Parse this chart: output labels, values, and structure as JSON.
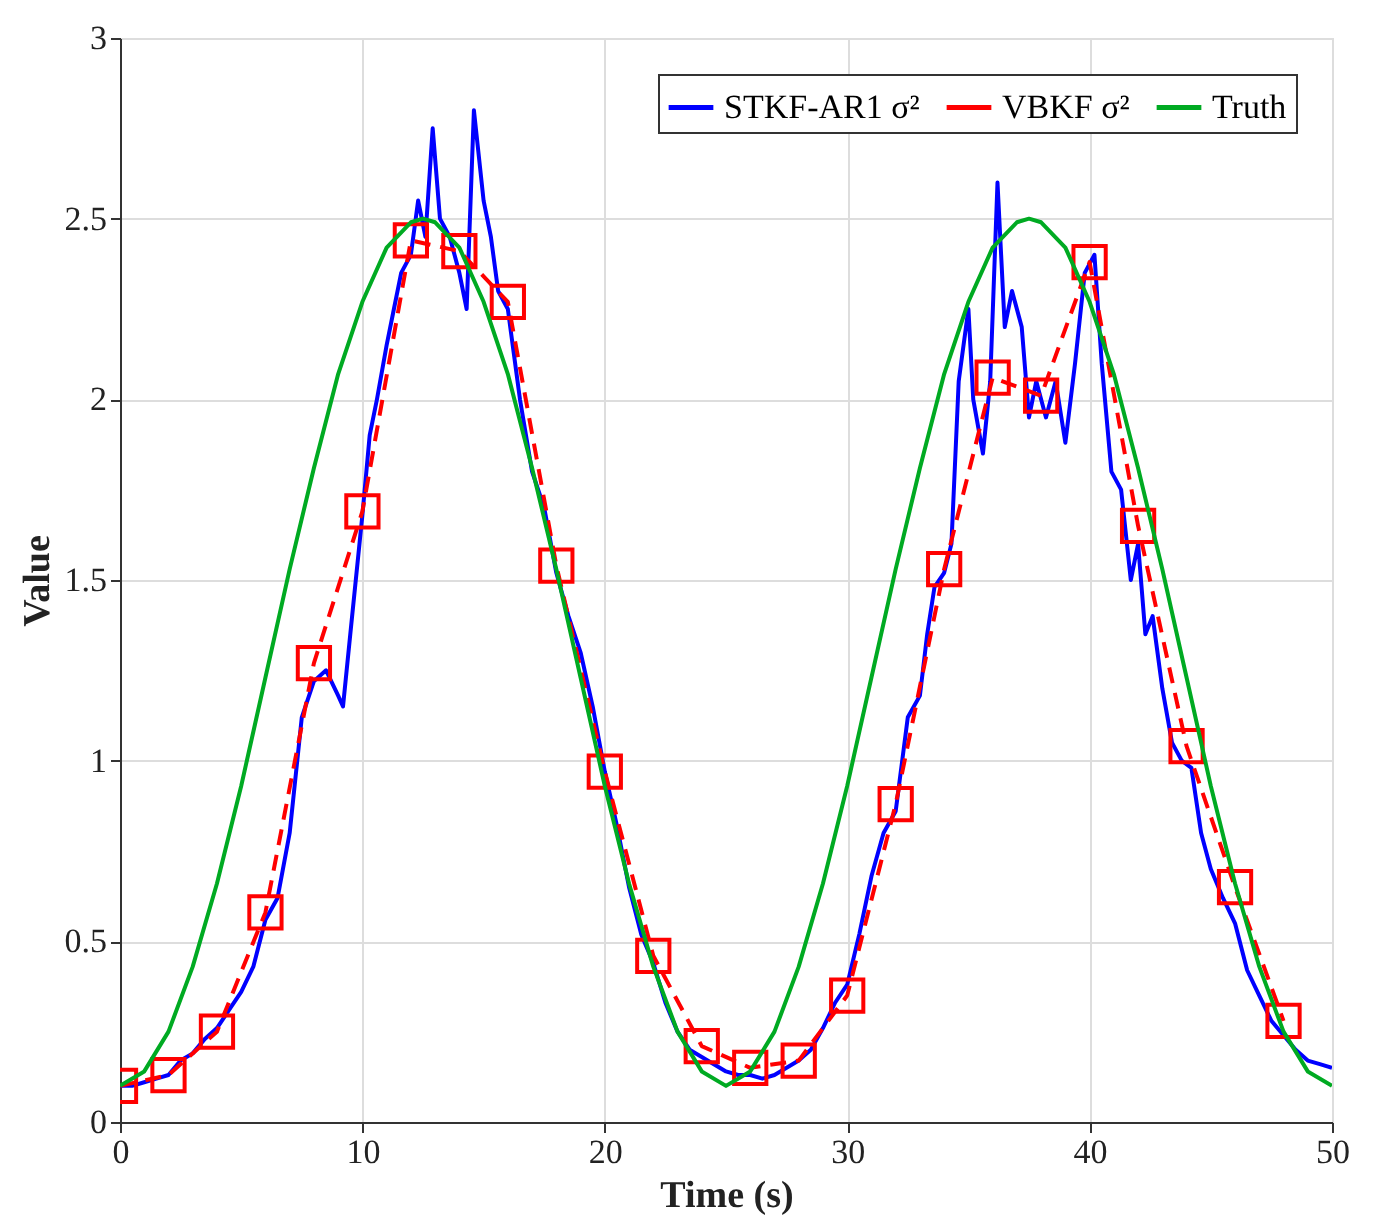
{
  "chart_data": {
    "type": "line",
    "xlabel": "Time (s)",
    "ylabel": "Value",
    "xlim": [
      0,
      50
    ],
    "ylim": [
      0,
      3
    ],
    "xticks": [
      0,
      10,
      20,
      30,
      40,
      50
    ],
    "yticks": [
      0,
      0.5,
      1,
      1.5,
      2,
      2.5,
      3
    ],
    "grid": true,
    "legend": "top right",
    "series": [
      {
        "name": "STKF-AR1 σ²",
        "color": "#0000ff",
        "marker": "none",
        "line_style": "solid",
        "x": [
          0,
          0.5,
          1,
          1.5,
          2,
          2.5,
          3,
          3.5,
          4,
          4.5,
          5,
          5.5,
          6,
          6.5,
          7,
          7.5,
          8,
          8.5,
          9,
          9.2,
          9.5,
          10,
          10.3,
          10.6,
          11,
          11.3,
          11.6,
          12,
          12.3,
          12.6,
          12.9,
          13.2,
          13.6,
          14,
          14.3,
          14.6,
          15,
          15.3,
          15.6,
          16,
          16.5,
          17,
          17.5,
          18,
          18.5,
          19,
          19.5,
          20,
          20.5,
          21,
          21.5,
          22,
          22.5,
          23,
          23.5,
          24,
          24.5,
          25,
          25.5,
          26,
          26.5,
          27,
          27.5,
          28,
          28.5,
          29,
          29.5,
          30,
          30.5,
          31,
          31.5,
          32,
          32.5,
          33,
          33.3,
          33.6,
          34,
          34.3,
          34.6,
          35,
          35.2,
          35.6,
          35.9,
          36.2,
          36.5,
          36.8,
          37.2,
          37.5,
          37.8,
          38.2,
          38.6,
          39,
          39.4,
          39.8,
          40.2,
          40.5,
          40.9,
          41.3,
          41.7,
          42,
          42.3,
          42.6,
          43,
          43.4,
          43.8,
          44.2,
          44.6,
          45,
          45.5,
          46,
          46.5,
          47,
          47.5,
          48,
          48.5,
          49,
          49.5,
          50
        ],
        "values": [
          0.1,
          0.1,
          0.11,
          0.12,
          0.13,
          0.17,
          0.19,
          0.23,
          0.26,
          0.31,
          0.36,
          0.43,
          0.56,
          0.62,
          0.8,
          1.12,
          1.22,
          1.25,
          1.18,
          1.15,
          1.35,
          1.68,
          1.9,
          2.0,
          2.15,
          2.25,
          2.35,
          2.4,
          2.55,
          2.45,
          2.75,
          2.5,
          2.45,
          2.35,
          2.25,
          2.8,
          2.55,
          2.45,
          2.3,
          2.25,
          2.0,
          1.8,
          1.7,
          1.52,
          1.4,
          1.3,
          1.15,
          0.97,
          0.82,
          0.65,
          0.52,
          0.44,
          0.33,
          0.25,
          0.2,
          0.18,
          0.16,
          0.14,
          0.13,
          0.13,
          0.12,
          0.13,
          0.15,
          0.17,
          0.2,
          0.26,
          0.33,
          0.38,
          0.52,
          0.68,
          0.8,
          0.86,
          1.12,
          1.18,
          1.35,
          1.48,
          1.52,
          1.6,
          2.05,
          2.25,
          2.0,
          1.85,
          2.05,
          2.6,
          2.2,
          2.3,
          2.2,
          1.95,
          2.05,
          1.95,
          2.05,
          1.88,
          2.1,
          2.35,
          2.4,
          2.1,
          1.8,
          1.75,
          1.5,
          1.6,
          1.35,
          1.4,
          1.2,
          1.05,
          1.0,
          0.98,
          0.8,
          0.7,
          0.62,
          0.55,
          0.42,
          0.35,
          0.28,
          0.24,
          0.2,
          0.17,
          0.16,
          0.15
        ]
      },
      {
        "name": "VBKF σ²",
        "color": "#ff0000",
        "marker": "square",
        "line_style": "dashed",
        "x": [
          0,
          2,
          4,
          6,
          8,
          10,
          12,
          14,
          16,
          18,
          20,
          22,
          24,
          26,
          28,
          30,
          32,
          34,
          36,
          38,
          40,
          42,
          44,
          46,
          48
        ],
        "values": [
          0.1,
          0.13,
          0.25,
          0.58,
          1.27,
          1.69,
          2.44,
          2.41,
          2.27,
          1.54,
          0.97,
          0.46,
          0.21,
          0.15,
          0.17,
          0.35,
          0.88,
          1.53,
          2.06,
          2.01,
          2.38,
          1.65,
          1.04,
          0.65,
          0.28
        ]
      },
      {
        "name": "Truth",
        "color": "#00aa22",
        "marker": "none",
        "line_style": "solid",
        "x": [
          0,
          1,
          2,
          3,
          4,
          5,
          6,
          7,
          8,
          9,
          10,
          11,
          12,
          12.5,
          13,
          14,
          15,
          16,
          17,
          18,
          19,
          20,
          21,
          22,
          23,
          24,
          25,
          26,
          27,
          28,
          29,
          30,
          31,
          32,
          33,
          34,
          35,
          36,
          37,
          37.5,
          38,
          39,
          40,
          41,
          42,
          43,
          44,
          45,
          46,
          47,
          48,
          49,
          50
        ],
        "values": [
          0.1,
          0.14,
          0.25,
          0.43,
          0.66,
          0.93,
          1.23,
          1.53,
          1.81,
          2.07,
          2.27,
          2.42,
          2.49,
          2.5,
          2.49,
          2.42,
          2.27,
          2.07,
          1.81,
          1.53,
          1.23,
          0.93,
          0.66,
          0.43,
          0.25,
          0.14,
          0.1,
          0.14,
          0.25,
          0.43,
          0.66,
          0.93,
          1.23,
          1.53,
          1.81,
          2.07,
          2.27,
          2.42,
          2.49,
          2.5,
          2.49,
          2.42,
          2.27,
          2.07,
          1.81,
          1.53,
          1.23,
          0.93,
          0.66,
          0.43,
          0.25,
          0.14,
          0.1
        ]
      }
    ]
  }
}
